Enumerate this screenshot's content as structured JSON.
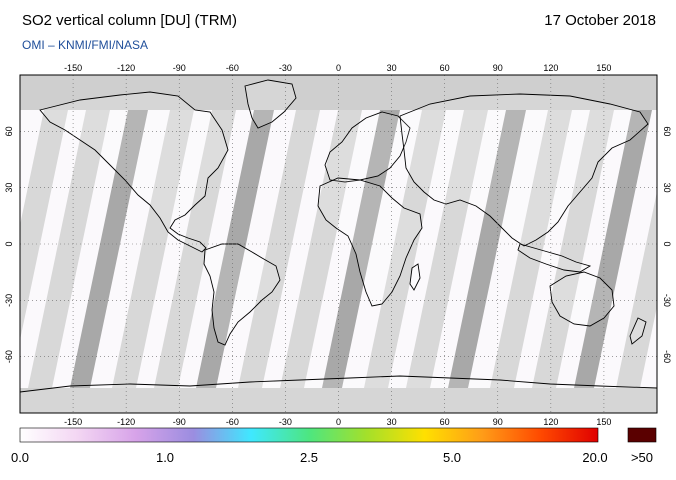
{
  "header": {
    "title": "SO2 vertical column [DU] (TRM)",
    "date": "17 October 2018",
    "subtitle": "OMI  –  KNMI/FMI/NASA"
  },
  "map": {
    "projection": "equirectangular",
    "lon_ticks": [
      "-150",
      "-120",
      "-90",
      "-60",
      "-30",
      "0",
      "30",
      "60",
      "90",
      "120",
      "150"
    ],
    "lat_ticks": [
      "60",
      "30",
      "0",
      "-30",
      "-60"
    ],
    "colors": {
      "no_data": "#cfcfcf",
      "swath_light": "#d8d8d8",
      "swath_dark": "#a8a8a8",
      "background": "#fbf9fc",
      "coastline": "#000000",
      "grid": "#666666"
    }
  },
  "colorbar": {
    "labels": [
      "0.0",
      "1.0",
      "2.5",
      "5.0",
      "20.0"
    ],
    "overflow_label": ">50",
    "overflow_color": "#5a0000",
    "gradient": [
      "#ffffff",
      "#f3d6f3",
      "#d7a3e9",
      "#9b8de0",
      "#3fe8ff",
      "#4de680",
      "#a4e02a",
      "#ffe000",
      "#ff9c18",
      "#ff4a00",
      "#e00000"
    ]
  }
}
